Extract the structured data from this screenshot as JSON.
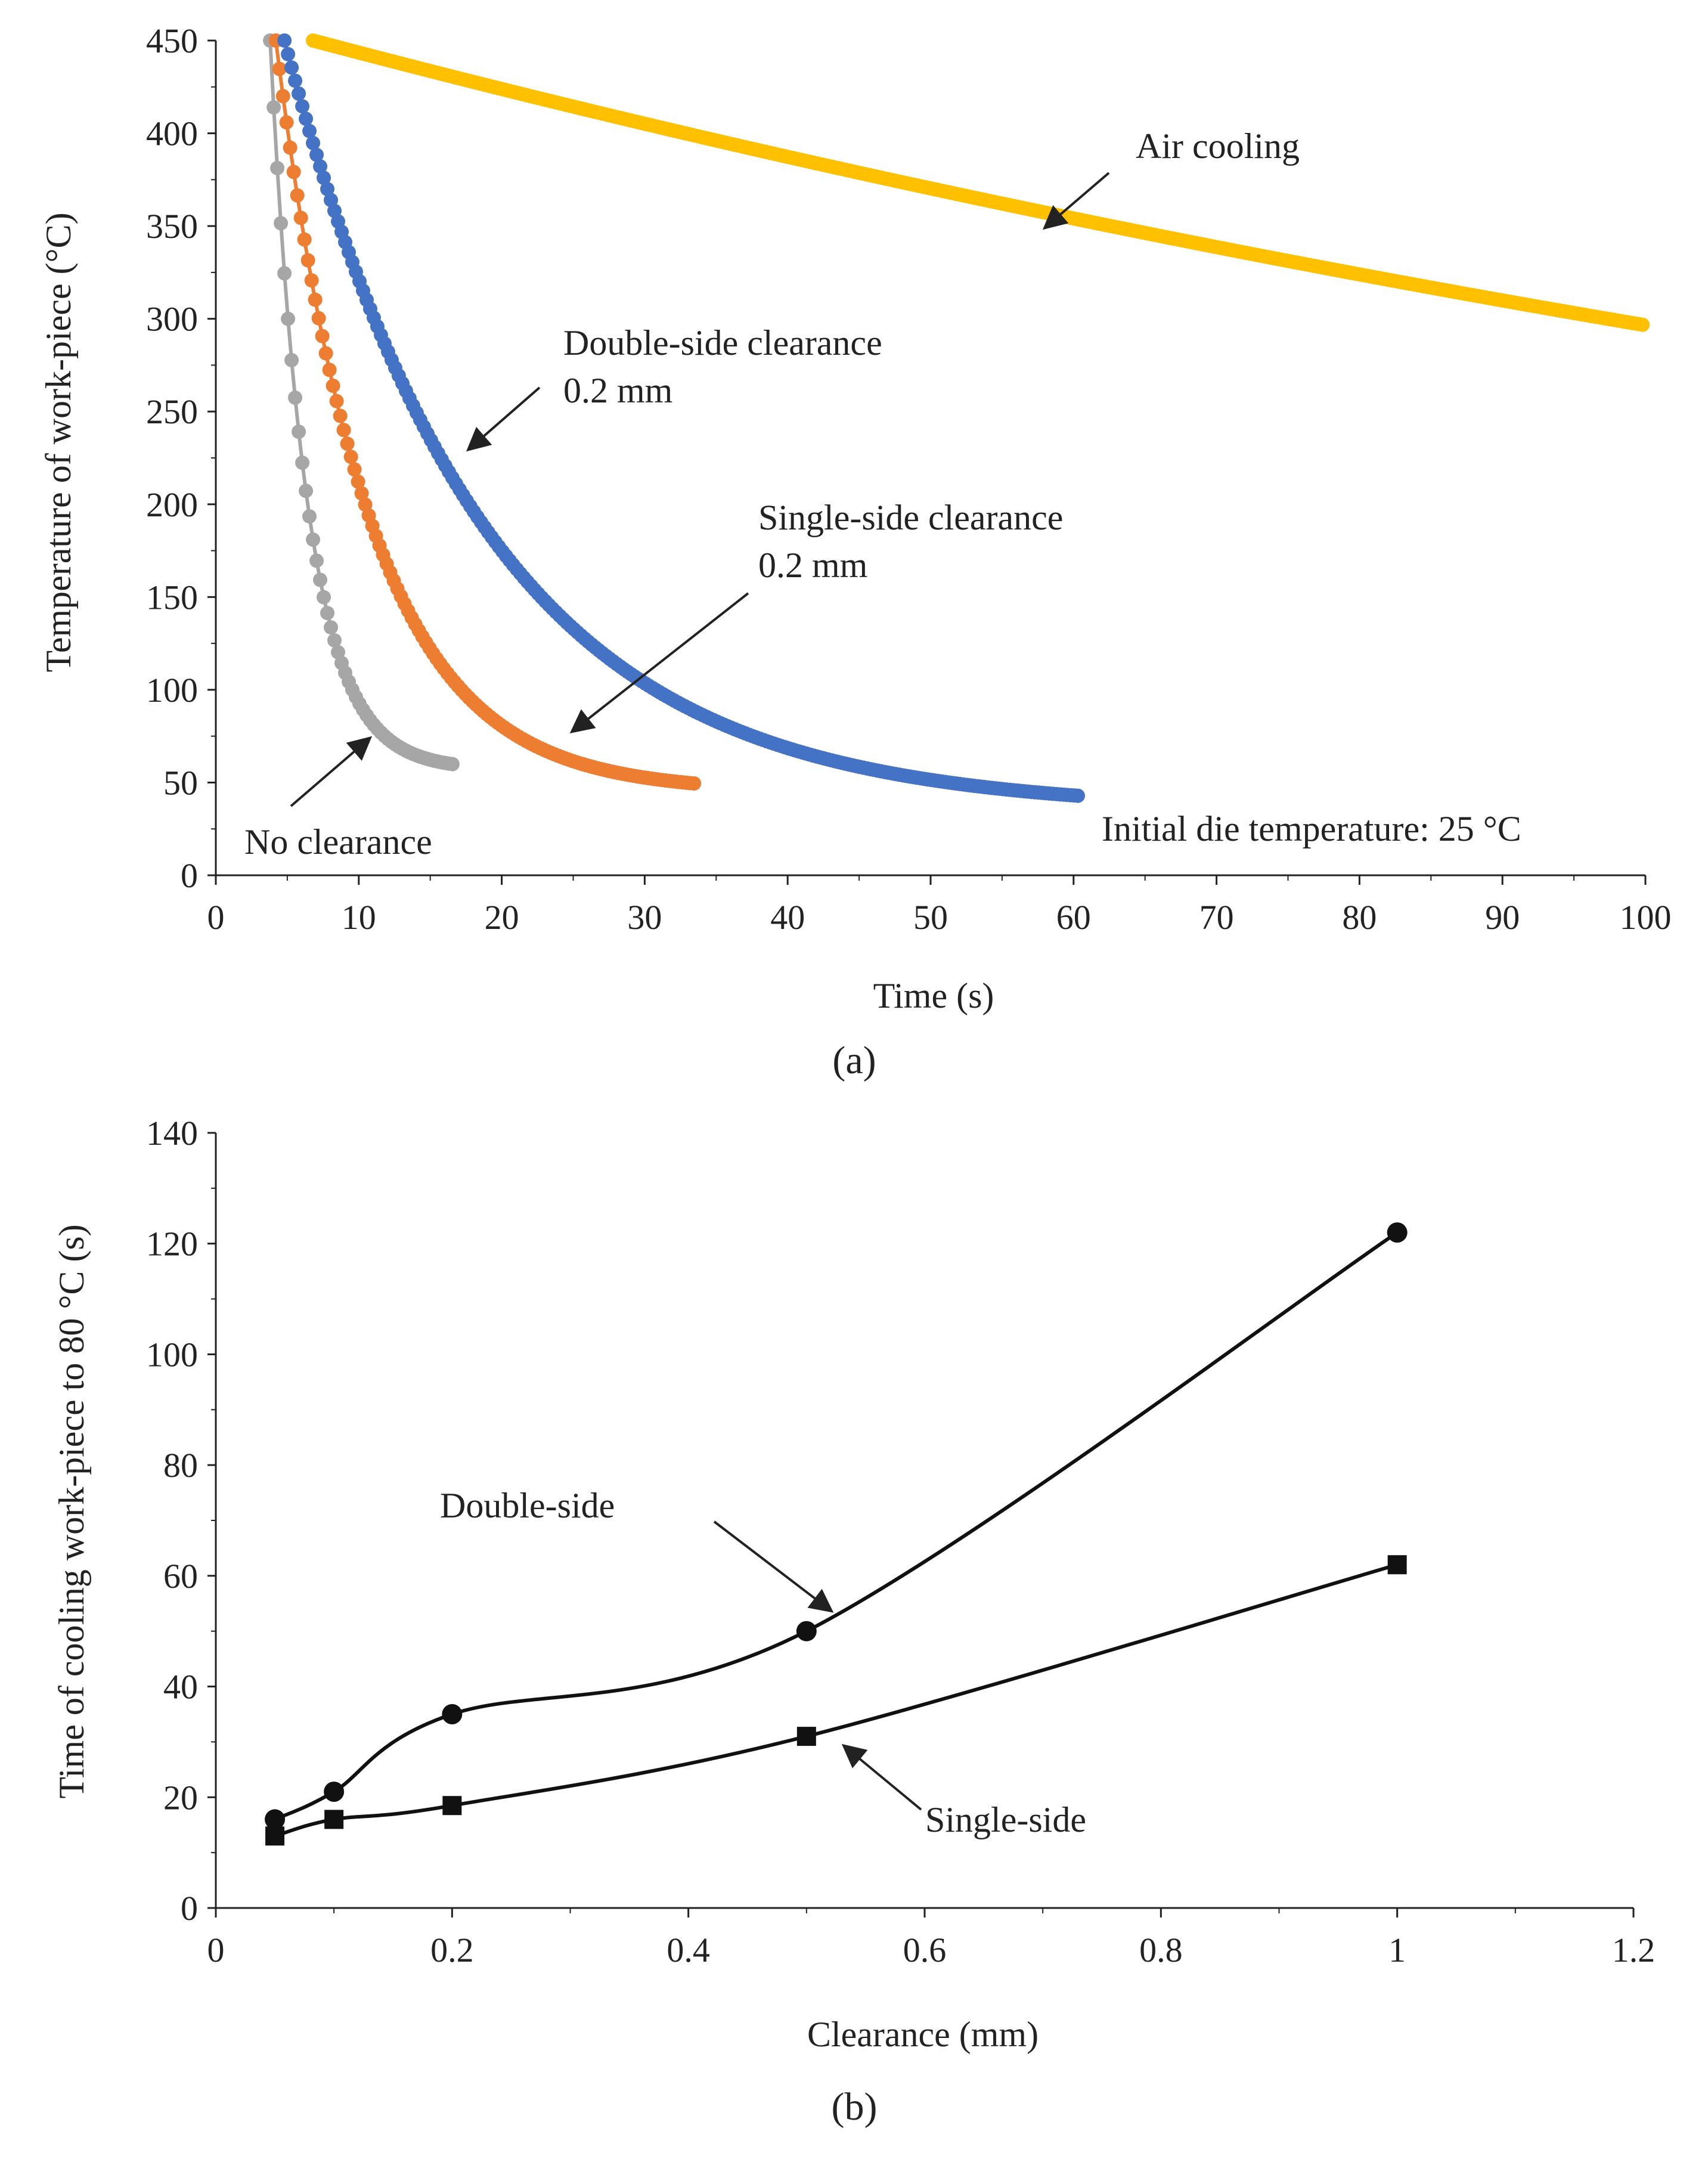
{
  "chart_data": [
    {
      "type": "scatter",
      "panel_label": "(a)",
      "xlabel": "Time (s)",
      "ylabel": "Temperature of work-piece (°C)",
      "xlim": [
        0,
        100
      ],
      "ylim": [
        0,
        450
      ],
      "xticks": [
        0,
        10,
        20,
        30,
        40,
        50,
        60,
        70,
        80,
        90,
        100
      ],
      "yticks": [
        0,
        50,
        100,
        150,
        200,
        250,
        300,
        350,
        400,
        450
      ],
      "series": [
        {
          "name": "No clearance",
          "color": "#a6a6a6",
          "model": {
            "t_start": 3.8,
            "t_end": 16.7,
            "T0": 450,
            "Tinf": 57,
            "tau": 2.6
          }
        },
        {
          "name": "Single-side clearance 0.2 mm",
          "color": "#ed7d31",
          "model": {
            "t_start": 4.2,
            "t_end": 33.5,
            "T0": 450,
            "Tinf": 45,
            "tau": 6.5
          }
        },
        {
          "name": "Double-side clearance 0.2 mm",
          "color": "#4472c4",
          "model": {
            "t_start": 4.8,
            "t_end": 60.5,
            "T0": 450,
            "Tinf": 35,
            "tau": 14
          }
        },
        {
          "name": "Air cooling",
          "color": "#ffc000",
          "model": {
            "t_start": 6.8,
            "t_end": 100,
            "T0": 450,
            "Tinf": 25,
            "tau": 208
          }
        }
      ],
      "annotations": [
        {
          "text": "Air cooling"
        },
        {
          "text": "Double-side clearance"
        },
        {
          "text": "0.2 mm"
        },
        {
          "text": "Single-side clearance"
        },
        {
          "text": "0.2 mm"
        },
        {
          "text": "No clearance"
        },
        {
          "text": "Initial die temperature: 25 °C"
        }
      ]
    },
    {
      "type": "line",
      "panel_label": "(b)",
      "xlabel": "Clearance (mm)",
      "ylabel": "Time of cooling work-piece to 80 °C (s)",
      "xlim": [
        0,
        1.2
      ],
      "ylim": [
        0,
        140
      ],
      "xticks": [
        0,
        0.2,
        0.4,
        0.6,
        0.8,
        1,
        1.2
      ],
      "xtick_labels": [
        "0",
        "0.2",
        "0.4",
        "0.6",
        "0.8",
        "1",
        "1.2"
      ],
      "yticks": [
        0,
        20,
        40,
        60,
        80,
        100,
        120,
        140
      ],
      "series": [
        {
          "name": "Double-side",
          "marker": "circle",
          "x": [
            0.05,
            0.1,
            0.2,
            0.5,
            1.0
          ],
          "y": [
            16,
            21,
            35,
            50,
            122
          ]
        },
        {
          "name": "Single-side",
          "marker": "square",
          "x": [
            0.05,
            0.1,
            0.2,
            0.5,
            1.0
          ],
          "y": [
            13,
            16,
            18.5,
            31,
            62
          ]
        }
      ],
      "annotations": [
        {
          "text": "Double-side"
        },
        {
          "text": "Single-side"
        }
      ]
    }
  ]
}
